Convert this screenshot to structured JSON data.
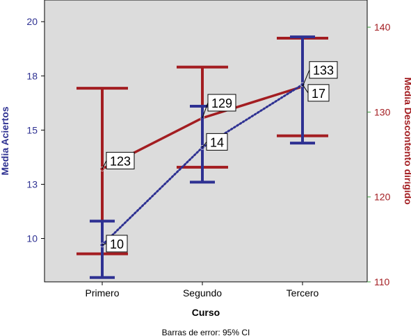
{
  "chart_data": {
    "type": "line",
    "categories": [
      "Primero",
      "Segundo",
      "Tercero"
    ],
    "xlabel": "Curso",
    "footnote": "Barras de error: 95% CI",
    "left_axis": {
      "label": "Media Aciertos",
      "ticks": [
        "10",
        "13",
        "15",
        "18",
        "20"
      ],
      "tick_values": [
        10,
        12.5,
        15,
        17.5,
        20
      ],
      "ylim": [
        8.0,
        21.0
      ],
      "color": "#2e3192"
    },
    "right_axis": {
      "label": "Media Descontento dirigido",
      "ticks": [
        "110",
        "120",
        "130",
        "140"
      ],
      "tick_values": [
        110,
        120,
        130,
        140
      ],
      "ylim": [
        110,
        143.2
      ],
      "color": "#a31d21"
    },
    "series": [
      {
        "name": "Media Aciertos",
        "axis": "left",
        "style": "dotted",
        "color": "#2e3192",
        "values": [
          9.7,
          14.2,
          17.1
        ],
        "ci_low": [
          8.2,
          12.6,
          14.4
        ],
        "ci_high": [
          10.8,
          16.1,
          19.3
        ],
        "data_labels": [
          "10",
          "14",
          "17"
        ]
      },
      {
        "name": "Media Descontento dirigido",
        "axis": "right",
        "style": "solid",
        "color": "#a31d21",
        "values": [
          123.3,
          129.3,
          133.0
        ],
        "ci_low": [
          113.3,
          123.5,
          127.2
        ],
        "ci_high": [
          132.8,
          135.3,
          138.7
        ],
        "data_labels": [
          "123",
          "129",
          "133"
        ]
      }
    ],
    "grid": false,
    "plot_background": "#dcdcdc"
  }
}
